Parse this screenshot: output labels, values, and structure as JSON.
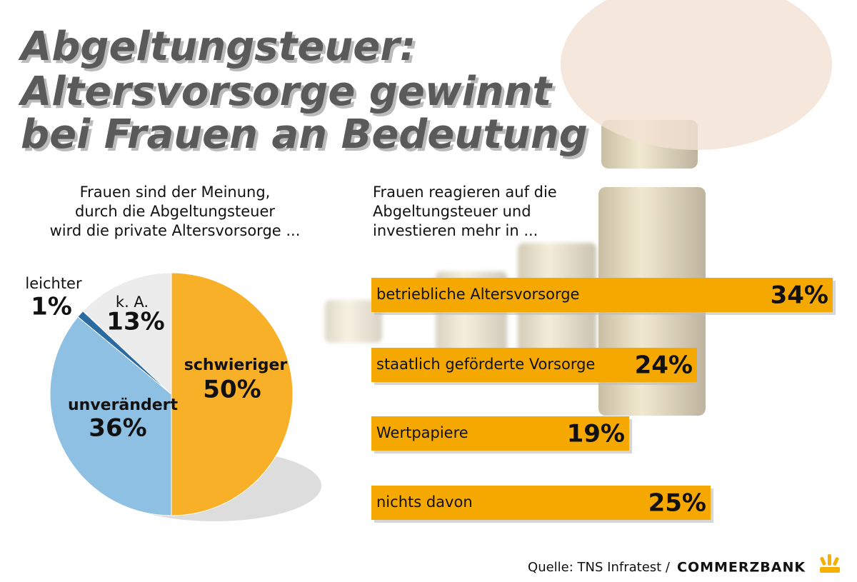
{
  "header": {
    "title_lines": [
      "Abgeltungsteuer:",
      "Altersvorsorge gewinnt",
      "bei Frauen an Bedeutung"
    ]
  },
  "chart_data": [
    {
      "type": "pie",
      "subtitle_lines": [
        "Frauen sind der Meinung,",
        "durch die Abgeltungsteuer",
        "wird die private Altersvorsorge ..."
      ],
      "categories": [
        "schwieriger",
        "unverändert",
        "leichter",
        "k. A."
      ],
      "values": [
        50,
        36,
        1,
        13
      ],
      "value_labels": [
        "50%",
        "36%",
        "1%",
        "13%"
      ],
      "colors": [
        "#f7b027",
        "#8ec0e3",
        "#2a6aa3",
        "#ececec"
      ]
    },
    {
      "type": "hbar",
      "subtitle_lines": [
        "Frauen reagieren auf die",
        "Abgeltungsteuer und",
        "investieren mehr in ..."
      ],
      "categories": [
        "betriebliche Altersvorsorge",
        "staatlich geförderte Vorsorge",
        "Wertpapiere",
        "nichts davon"
      ],
      "values": [
        34,
        24,
        19,
        25
      ],
      "value_labels": [
        "34%",
        "24%",
        "19%",
        "25%"
      ],
      "color": "#f5a800"
    }
  ],
  "footer": {
    "source": "Quelle: TNS Infratest /",
    "brand": "COMMERZBANK"
  }
}
